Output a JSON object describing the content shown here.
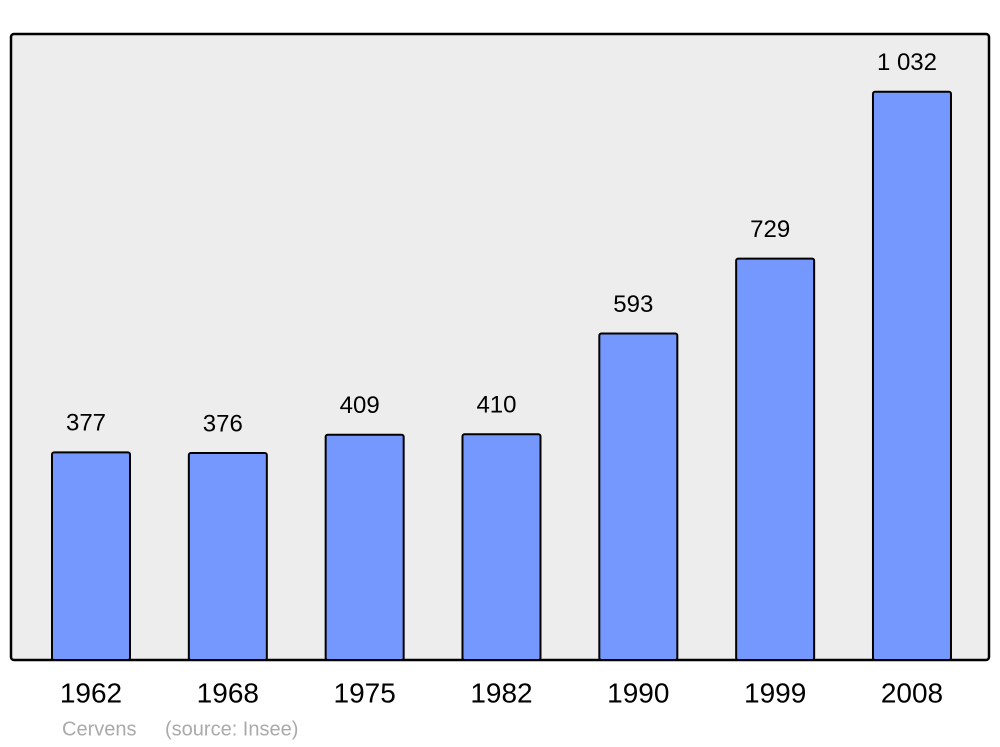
{
  "chart_data": {
    "type": "bar",
    "categories": [
      "1962",
      "1968",
      "1975",
      "1982",
      "1990",
      "1999",
      "2008"
    ],
    "values": [
      377,
      376,
      409,
      410,
      593,
      729,
      1032
    ],
    "value_labels": [
      "377",
      "376",
      "409",
      "410",
      "593",
      "729",
      "1 032"
    ],
    "color": "#7598ff",
    "ylim": [
      0,
      1135
    ],
    "place": "Cervens",
    "source": "(source: Insee)"
  }
}
